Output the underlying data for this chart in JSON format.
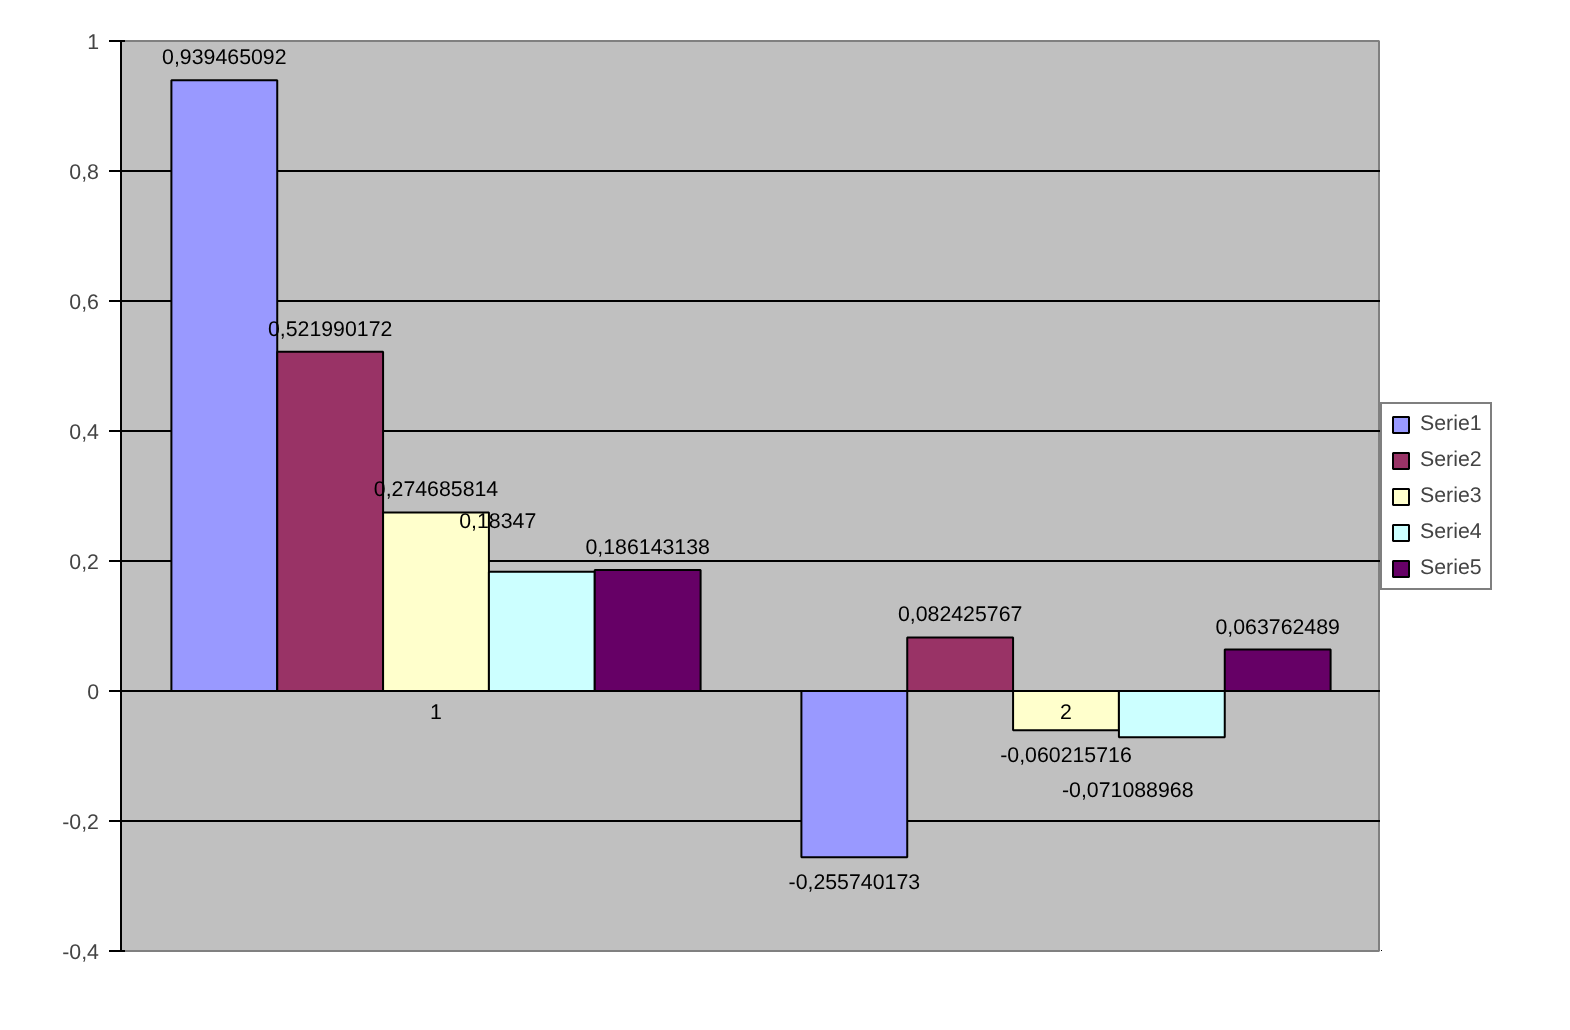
{
  "chart_data": {
    "type": "bar",
    "categories": [
      "1",
      "2"
    ],
    "series": [
      {
        "name": "Serie1",
        "color": "#9999ff",
        "values": [
          0.939465092,
          -0.255740173
        ],
        "value_labels": [
          "0,939465092",
          "-0,255740173"
        ]
      },
      {
        "name": "Serie2",
        "color": "#993366",
        "values": [
          0.521990172,
          0.082425767
        ],
        "value_labels": [
          "0,521990172",
          "0,082425767"
        ]
      },
      {
        "name": "Serie3",
        "color": "#ffffcc",
        "values": [
          0.274685814,
          -0.060215716
        ],
        "value_labels": [
          "0,274685814",
          "-0,060215716"
        ]
      },
      {
        "name": "Serie4",
        "color": "#ccffff",
        "values": [
          0.18347,
          -0.071088968
        ],
        "value_labels": [
          "0,18347",
          "-0,071088968"
        ]
      },
      {
        "name": "Serie5",
        "color": "#660066",
        "values": [
          0.186143138,
          0.063762489
        ],
        "value_labels": [
          "0,186143138",
          "0,063762489"
        ]
      }
    ],
    "ylim": [
      -0.4,
      1
    ],
    "yticks": [
      {
        "value": -0.4,
        "label": "-0,4"
      },
      {
        "value": -0.2,
        "label": "-0,2"
      },
      0,
      {
        "value": 0.2,
        "label": "0,2"
      },
      {
        "value": 0.4,
        "label": "0,4"
      },
      {
        "value": 0.6,
        "label": "0,6"
      },
      {
        "value": 0.8,
        "label": "0,8"
      },
      1
    ],
    "grid": "y",
    "legend": "right"
  }
}
